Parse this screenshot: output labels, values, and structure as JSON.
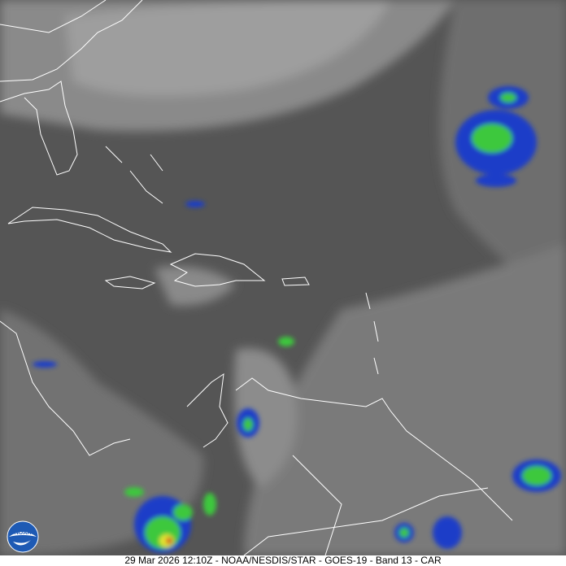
{
  "caption": "29 Mar 2026 12:10Z - NOAA/NESDIS/STAR - GOES-19 - Band 13 - CAR",
  "logo_text": "NOAA",
  "colors": {
    "background": "#5a5a5a",
    "coastline": "#ffffff",
    "cold_cloud_blue": "#1a3cc8",
    "cold_cloud_green": "#3cc83c",
    "cold_cloud_yellow": "#e6e632",
    "cold_cloud_red": "#d22020"
  }
}
